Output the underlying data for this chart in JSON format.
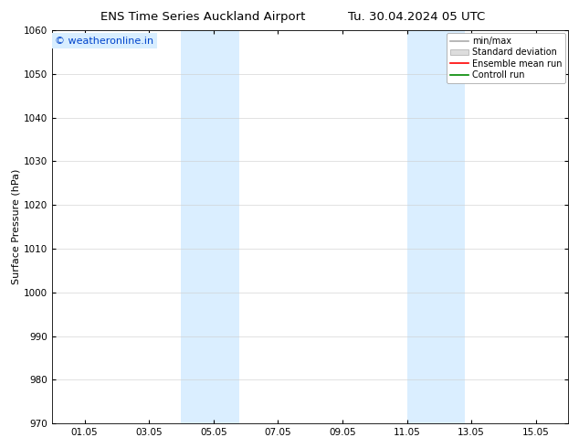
{
  "title_left": "ENS Time Series Auckland Airport",
  "title_right": "Tu. 30.04.2024 05 UTC",
  "ylabel": "Surface Pressure (hPa)",
  "ylim": [
    970,
    1060
  ],
  "yticks": [
    970,
    980,
    990,
    1000,
    1010,
    1020,
    1030,
    1040,
    1050,
    1060
  ],
  "xtick_labels": [
    "01.05",
    "03.05",
    "05.05",
    "07.05",
    "09.05",
    "11.05",
    "13.05",
    "15.05"
  ],
  "xtick_positions": [
    1,
    3,
    5,
    7,
    9,
    11,
    13,
    15
  ],
  "xlim": [
    0,
    16
  ],
  "shaded_bands": [
    {
      "x_start": 4.0,
      "x_end": 5.8,
      "color": "#daeeff"
    },
    {
      "x_start": 11.0,
      "x_end": 12.8,
      "color": "#daeeff"
    }
  ],
  "watermark_text": "© weatheronline.in",
  "watermark_color": "#0044cc",
  "watermark_bg": "#d8eeff",
  "legend_items": [
    {
      "label": "min/max",
      "type": "line",
      "color": "#aaaaaa",
      "linewidth": 1.2
    },
    {
      "label": "Standard deviation",
      "type": "patch",
      "facecolor": "#dddddd",
      "edgecolor": "#aaaaaa"
    },
    {
      "label": "Ensemble mean run",
      "type": "line",
      "color": "#ff0000",
      "linewidth": 1.2
    },
    {
      "label": "Controll run",
      "type": "line",
      "color": "#008800",
      "linewidth": 1.2
    }
  ],
  "bg_color": "#ffffff",
  "grid_color": "#cccccc",
  "font_size_title": 9.5,
  "font_size_axis": 8,
  "font_size_ticks": 7.5,
  "font_size_legend": 7,
  "font_size_watermark": 8
}
